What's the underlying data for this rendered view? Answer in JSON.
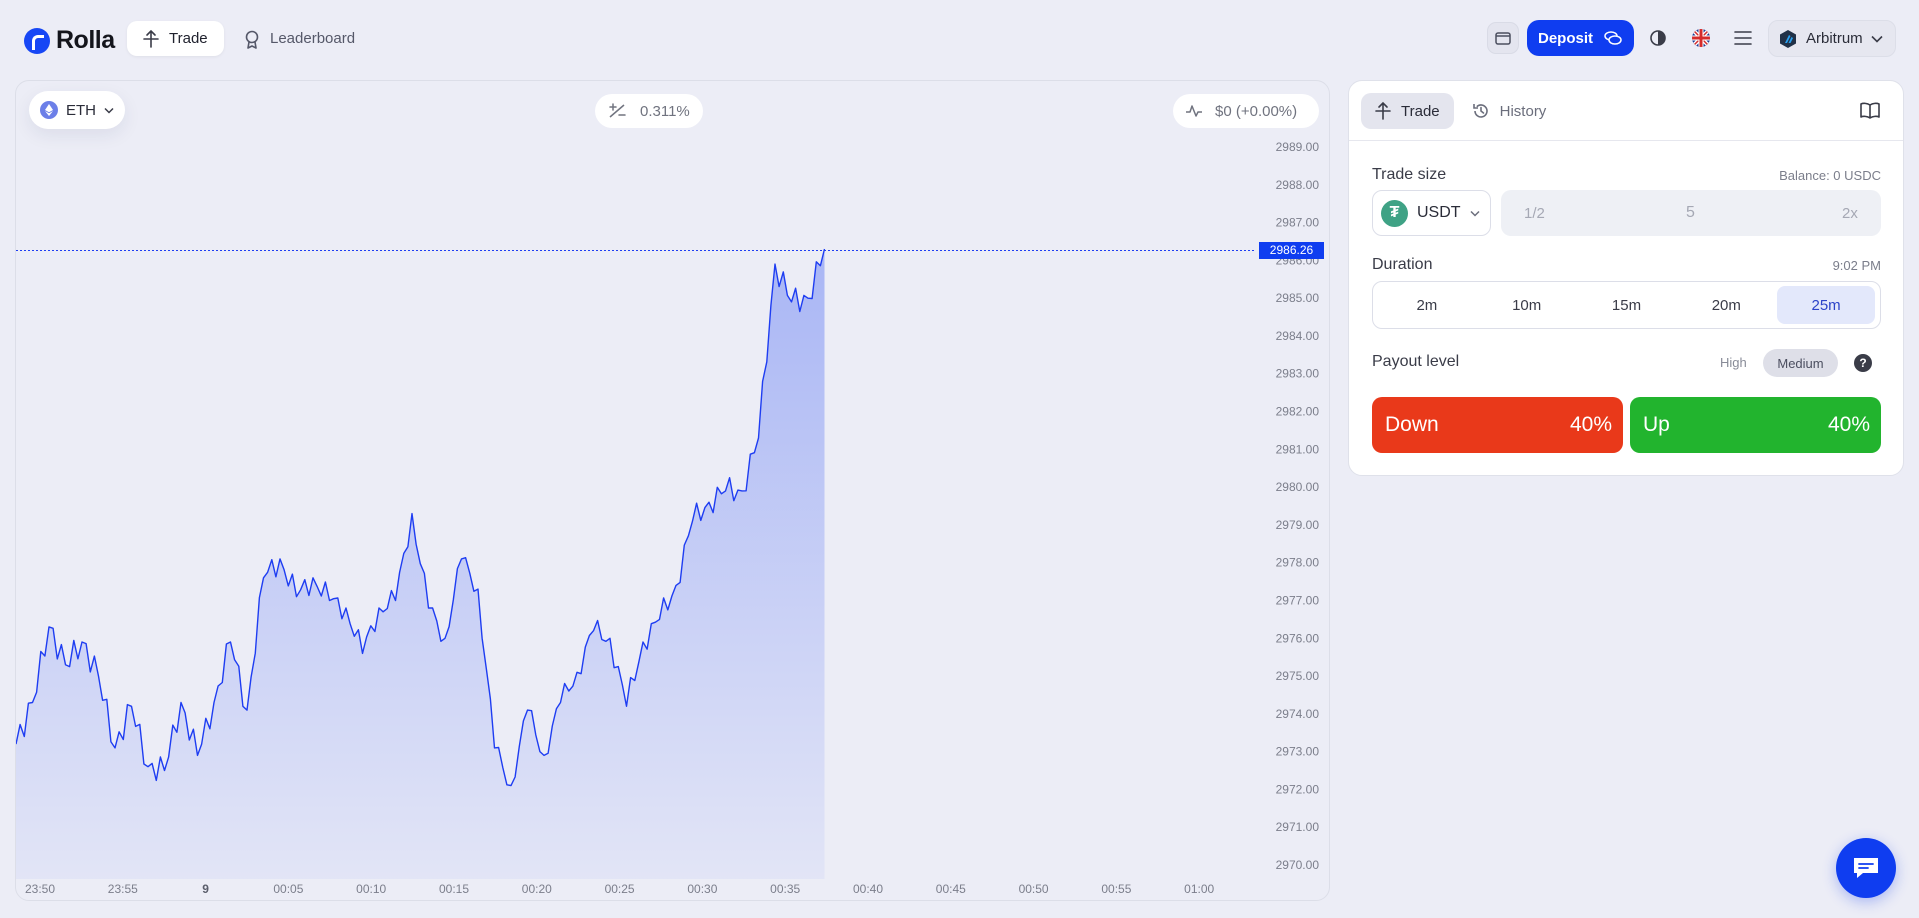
{
  "brand": {
    "name": "Rolla"
  },
  "nav": {
    "trade_label": "Trade",
    "leaderboard_label": "Leaderboard"
  },
  "header": {
    "deposit_label": "Deposit",
    "network_label": "Arbitrum"
  },
  "chart_toolbar": {
    "asset": "ETH",
    "change": "0.311%",
    "pnl": "$0 (+0.00%)"
  },
  "chart_data": {
    "type": "area",
    "current_price": "2986.26",
    "y_ticks": [
      "2989.00",
      "2988.00",
      "2987.00",
      "2986.00",
      "2985.00",
      "2984.00",
      "2983.00",
      "2982.00",
      "2981.00",
      "2980.00",
      "2979.00",
      "2978.00",
      "2977.00",
      "2976.00",
      "2975.00",
      "2974.00",
      "2973.00",
      "2972.00",
      "2971.00",
      "2970.00"
    ],
    "x_ticks": [
      "23:50",
      "23:55",
      "9",
      "00:05",
      "00:10",
      "00:15",
      "00:20",
      "00:25",
      "00:30",
      "00:35",
      "00:40",
      "00:45",
      "00:50",
      "00:55",
      "01:00"
    ],
    "ylim": [
      2970,
      2989
    ],
    "x": [
      "23:49",
      "23:50",
      "23:51",
      "23:52",
      "23:53",
      "23:54",
      "23:55",
      "23:56",
      "23:57",
      "23:58",
      "23:59",
      "00:00",
      "00:01",
      "00:02",
      "00:03",
      "00:04",
      "00:05",
      "00:06",
      "00:07",
      "00:08",
      "00:09",
      "00:10",
      "00:11",
      "00:12",
      "00:13",
      "00:14",
      "00:15",
      "00:16",
      "00:17",
      "00:18",
      "00:19",
      "00:20",
      "00:21",
      "00:22",
      "00:23",
      "00:24",
      "00:25",
      "00:26",
      "00:27",
      "00:28",
      "00:29",
      "00:30",
      "00:31",
      "00:32",
      "00:33",
      "00:34",
      "00:35",
      "00:36",
      "00:37",
      "00:38"
    ],
    "values": [
      2973.2,
      2974.3,
      2976.3,
      2975.3,
      2975.9,
      2975.0,
      2973.1,
      2974.2,
      2972.6,
      2972.5,
      2974.3,
      2972.9,
      2974.3,
      2975.9,
      2974.1,
      2977.6,
      2978.1,
      2977.1,
      2977.6,
      2977.0,
      2976.8,
      2975.6,
      2976.8,
      2977.0,
      2979.3,
      2976.8,
      2976.0,
      2978.1,
      2977.3,
      2973.1,
      2972.1,
      2974.1,
      2972.9,
      2974.3,
      2975.1,
      2976.2,
      2976.0,
      2974.2,
      2975.9,
      2976.5,
      2977.4,
      2979.1,
      2979.6,
      2979.9,
      2979.9,
      2981.3,
      2985.9,
      2984.9,
      2985.0,
      2986.3
    ],
    "line_color": "#1e3df2",
    "area_color": "#a9b6f5"
  },
  "trade_panel": {
    "tabs": [
      {
        "label": "Trade"
      },
      {
        "label": "History"
      }
    ],
    "trade_size_label": "Trade size",
    "balance": "Balance: 0 USDC",
    "token": "USDT",
    "amount_half": "1/2",
    "amount_value": "5",
    "amount_double": "2x",
    "duration_label": "Duration",
    "expiry_time": "9:02 PM",
    "durations": [
      "2m",
      "10m",
      "15m",
      "20m",
      "25m"
    ],
    "selected_duration": "25m",
    "payout_label": "Payout level",
    "payout_high": "High",
    "payout_medium": "Medium",
    "help": "?",
    "down_label": "Down",
    "down_payout": "40%",
    "up_label": "Up",
    "up_payout": "40%",
    "down_color": "#e9391a",
    "up_color": "#22b42e"
  },
  "colors": {
    "accent": "#0f3df0",
    "background": "#ecedf6"
  }
}
